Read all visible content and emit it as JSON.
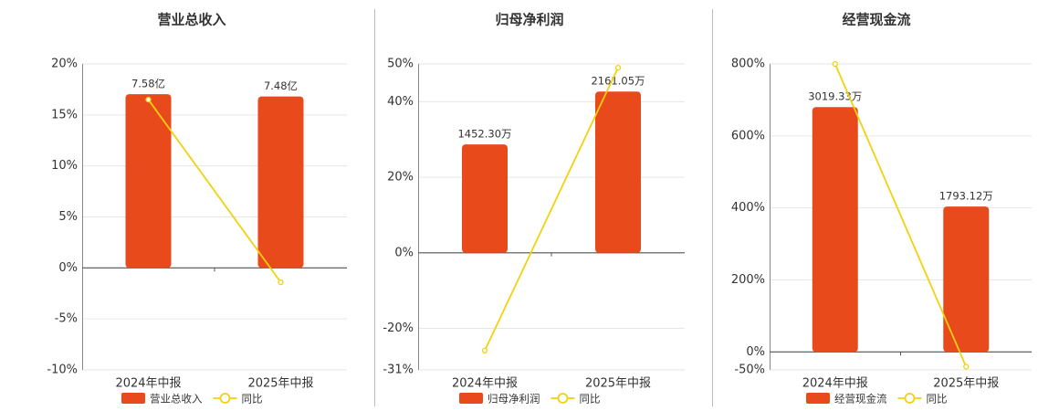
{
  "chart_data": [
    {
      "type": "combo",
      "title": "营业总收入",
      "categories": [
        "2024年中报",
        "2025年中报"
      ],
      "ylim": [
        -10,
        20
      ],
      "yticks": [
        {
          "value": -10,
          "label": "-10%"
        },
        {
          "value": -5,
          "label": "-5%"
        },
        {
          "value": 0,
          "label": "0%"
        },
        {
          "value": 5,
          "label": "5%"
        },
        {
          "value": 10,
          "label": "10%"
        },
        {
          "value": 15,
          "label": "15%"
        },
        {
          "value": 20,
          "label": "20%"
        }
      ],
      "y2lim": [
        -4.45,
        8.9
      ],
      "series": [
        {
          "name": "营业总收入",
          "type": "bar",
          "axis": "y2",
          "color": "#e84a1c",
          "values": [
            7.58,
            7.48
          ],
          "value_labels": [
            "7.58亿",
            "7.48亿"
          ]
        },
        {
          "name": "同比",
          "type": "line",
          "color": "#f2d10f",
          "values": [
            16.5,
            -1.4
          ]
        }
      ]
    },
    {
      "type": "combo",
      "title": "归母净利润",
      "categories": [
        "2024年中报",
        "2025年中报"
      ],
      "ylim": [
        -31,
        50
      ],
      "yticks": [
        {
          "value": -31,
          "label": "-31%"
        },
        {
          "value": -20,
          "label": "-20%"
        },
        {
          "value": 0,
          "label": "0%"
        },
        {
          "value": 20,
          "label": "20%"
        },
        {
          "value": 40,
          "label": "40%"
        },
        {
          "value": 50,
          "label": "50%"
        }
      ],
      "y2lim": [
        -1569,
        2531
      ],
      "series": [
        {
          "name": "归母净利润",
          "type": "bar",
          "axis": "y2",
          "color": "#e84a1c",
          "values": [
            1452.3,
            2161.05
          ],
          "value_labels": [
            "1452.30万",
            "2161.05万"
          ]
        },
        {
          "name": "同比",
          "type": "line",
          "color": "#f2d10f",
          "values": [
            -25.9,
            49
          ]
        }
      ]
    },
    {
      "type": "combo",
      "title": "经营现金流",
      "categories": [
        "2024年中报",
        "2025年中报"
      ],
      "ylim": [
        -50,
        800
      ],
      "yticks": [
        {
          "value": -50,
          "label": "-50%"
        },
        {
          "value": 0,
          "label": "0%"
        },
        {
          "value": 200,
          "label": "200%"
        },
        {
          "value": 400,
          "label": "400%"
        },
        {
          "value": 600,
          "label": "600%"
        },
        {
          "value": 800,
          "label": "800%"
        }
      ],
      "y2lim": [
        -222,
        3551
      ],
      "series": [
        {
          "name": "经营现金流",
          "type": "bar",
          "axis": "y2",
          "color": "#e84a1c",
          "values": [
            3019.33,
            1793.12
          ],
          "value_labels": [
            "3019.33万",
            "1793.12万"
          ]
        },
        {
          "name": "同比",
          "type": "line",
          "color": "#f2d10f",
          "values": [
            800,
            -41
          ]
        }
      ]
    }
  ]
}
